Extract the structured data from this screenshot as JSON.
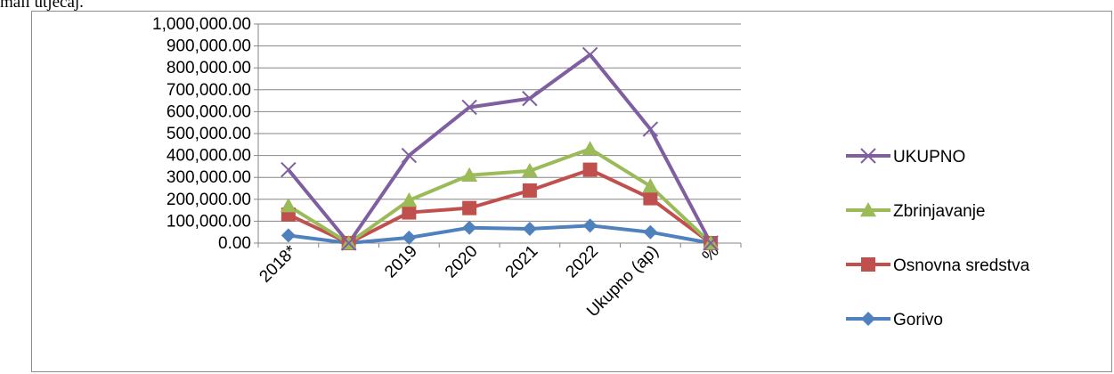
{
  "doc": {
    "cut_text": "mali utjecaj."
  },
  "chart_data": {
    "type": "line",
    "categories": [
      "2018*",
      "",
      "2019",
      "2020",
      "2021",
      "2022",
      "Ukupno (ap)",
      "%"
    ],
    "ylim": [
      0,
      1000000
    ],
    "y_ticks": [
      "0.00",
      "100,000.00",
      "200,000.00",
      "300,000.00",
      "400,000.00",
      "500,000.00",
      "600,000.00",
      "700,000.00",
      "800,000.00",
      "900,000.00",
      "1,000,000.00"
    ],
    "grid": true,
    "legend_position": "right",
    "series": [
      {
        "name": "UKUPNO",
        "marker": "x",
        "color": "#7F5FA0",
        "values": [
          335000,
          0,
          400000,
          620000,
          660000,
          860000,
          520000,
          0
        ]
      },
      {
        "name": "Zbrinjavanje",
        "marker": "triangle",
        "color": "#9BBB59",
        "values": [
          170000,
          0,
          195000,
          310000,
          330000,
          430000,
          260000,
          0
        ]
      },
      {
        "name": "Osnovna sredstva",
        "marker": "square",
        "color": "#C0504D",
        "values": [
          130000,
          0,
          140000,
          160000,
          240000,
          335000,
          205000,
          0
        ]
      },
      {
        "name": "Gorivo",
        "marker": "diamond",
        "color": "#4F81BD",
        "values": [
          35000,
          0,
          25000,
          70000,
          65000,
          80000,
          50000,
          0
        ]
      }
    ]
  }
}
